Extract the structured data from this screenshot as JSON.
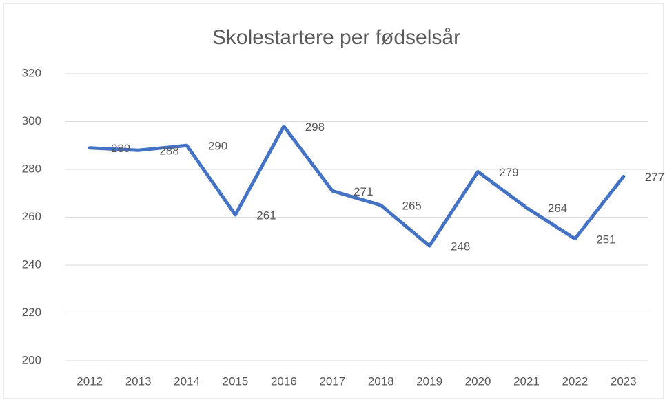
{
  "chart_data": {
    "type": "line",
    "title": "Skolestartere per fødselsår",
    "categories": [
      "2012",
      "2013",
      "2014",
      "2015",
      "2016",
      "2017",
      "2018",
      "2019",
      "2020",
      "2021",
      "2022",
      "2023"
    ],
    "series": [
      {
        "name": "Skolestartere",
        "color": "#4472c4",
        "values": [
          289,
          288,
          290,
          261,
          298,
          271,
          265,
          248,
          279,
          264,
          251,
          277
        ]
      }
    ],
    "ylim": [
      200,
      320
    ],
    "yticks": [
      200,
      220,
      240,
      260,
      280,
      300,
      320
    ],
    "grid": true,
    "data_labels": true
  }
}
